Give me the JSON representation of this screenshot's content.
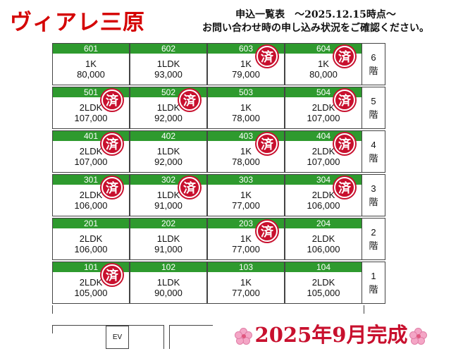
{
  "title": "ヴィアレ三原",
  "header": {
    "line1": "申込一覧表　～2025.12.15時点～",
    "line2": "お問い合わせ時の申し込み状況をご確認ください。"
  },
  "stamp_text": "済",
  "floors": [
    {
      "label": [
        "6",
        "階"
      ],
      "units": [
        {
          "number": "601",
          "type": "1K",
          "rent": "80,000",
          "taken": false
        },
        {
          "number": "602",
          "type": "1LDK",
          "rent": "93,000",
          "taken": false
        },
        {
          "number": "603",
          "type": "1K",
          "rent": "79,000",
          "taken": true
        },
        {
          "number": "604",
          "type": "1K",
          "rent": "80,000",
          "taken": true
        }
      ]
    },
    {
      "label": [
        "5",
        "階"
      ],
      "units": [
        {
          "number": "501",
          "type": "2LDK",
          "rent": "107,000",
          "taken": true
        },
        {
          "number": "502",
          "type": "1LDK",
          "rent": "92,000",
          "taken": true
        },
        {
          "number": "503",
          "type": "1K",
          "rent": "78,000",
          "taken": false
        },
        {
          "number": "504",
          "type": "2LDK",
          "rent": "107,000",
          "taken": true
        }
      ]
    },
    {
      "label": [
        "4",
        "階"
      ],
      "units": [
        {
          "number": "401",
          "type": "2LDK",
          "rent": "107,000",
          "taken": true
        },
        {
          "number": "402",
          "type": "1LDK",
          "rent": "92,000",
          "taken": false
        },
        {
          "number": "403",
          "type": "1K",
          "rent": "78,000",
          "taken": true
        },
        {
          "number": "404",
          "type": "2LDK",
          "rent": "107,000",
          "taken": true
        }
      ]
    },
    {
      "label": [
        "3",
        "階"
      ],
      "units": [
        {
          "number": "301",
          "type": "2LDK",
          "rent": "106,000",
          "taken": true
        },
        {
          "number": "302",
          "type": "1LDK",
          "rent": "91,000",
          "taken": true
        },
        {
          "number": "303",
          "type": "1K",
          "rent": "77,000",
          "taken": false
        },
        {
          "number": "304",
          "type": "2LDK",
          "rent": "106,000",
          "taken": true
        }
      ]
    },
    {
      "label": [
        "2",
        "階"
      ],
      "units": [
        {
          "number": "201",
          "type": "2LDK",
          "rent": "106,000",
          "taken": false
        },
        {
          "number": "202",
          "type": "1LDK",
          "rent": "91,000",
          "taken": false
        },
        {
          "number": "203",
          "type": "1K",
          "rent": "77,000",
          "taken": true
        },
        {
          "number": "204",
          "type": "2LDK",
          "rent": "106,000",
          "taken": false
        }
      ]
    },
    {
      "label": [
        "1",
        "階"
      ],
      "units": [
        {
          "number": "101",
          "type": "2LDK",
          "rent": "105,000",
          "taken": true
        },
        {
          "number": "102",
          "type": "1LDK",
          "rent": "90,000",
          "taken": false
        },
        {
          "number": "103",
          "type": "1K",
          "rent": "77,000",
          "taken": false
        },
        {
          "number": "104",
          "type": "2LDK",
          "rent": "105,000",
          "taken": false
        }
      ]
    }
  ],
  "ev_label": "EV",
  "completion": "2025年9月完成",
  "colors": {
    "title": "#d40000",
    "header_band": "#2e9a2e",
    "stamp": "#c8102e",
    "flower": "#f4a6c6"
  }
}
